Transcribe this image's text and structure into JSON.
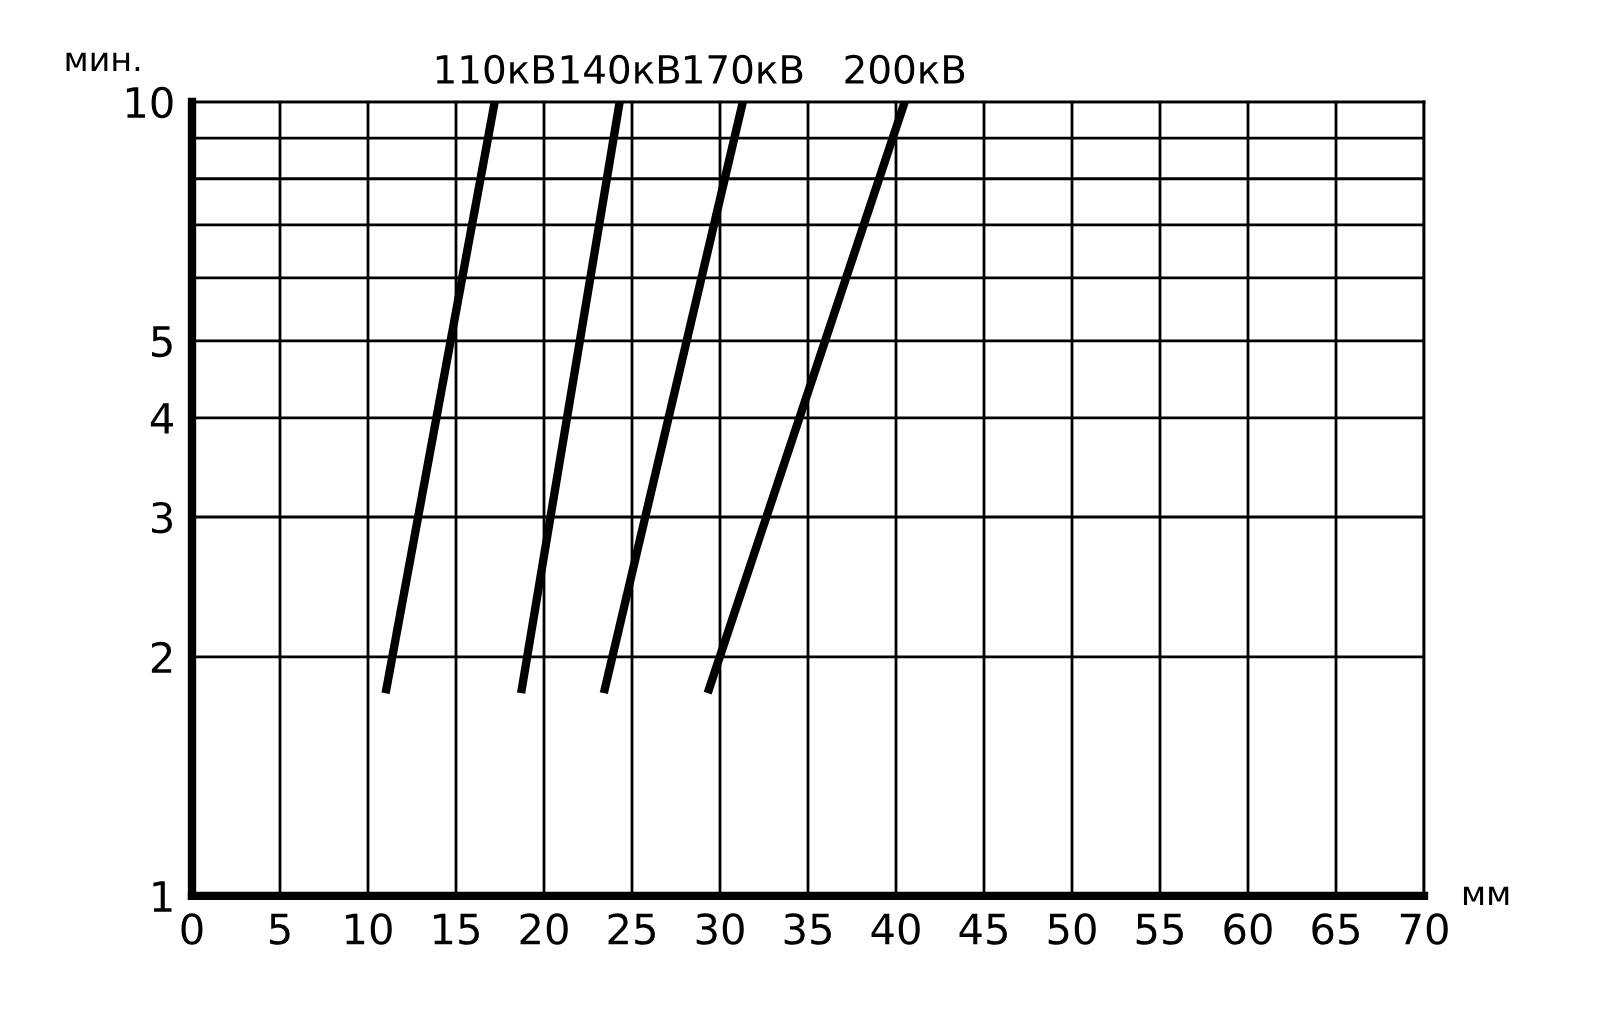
{
  "chart_data": {
    "type": "line",
    "xlabel": "мм",
    "ylabel": "мин.",
    "log": "y",
    "xlim": [
      0,
      70
    ],
    "xticks": [
      0,
      5,
      10,
      15,
      20,
      25,
      30,
      35,
      40,
      45,
      50,
      55,
      60,
      65,
      70
    ],
    "ylim": [
      1,
      10
    ],
    "yticks": [
      1,
      2,
      3,
      4,
      5,
      {
        "value": 6,
        "label": null
      },
      {
        "value": 7,
        "label": null
      },
      {
        "value": 8,
        "label": null
      },
      {
        "value": 9,
        "label": null
      },
      10
    ],
    "grid": true,
    "legend": false,
    "marker": "none",
    "line_style": "solid",
    "series": [
      {
        "name": "110кВ",
        "color": "#000000",
        "x": [
          11.0,
          17.2
        ],
        "values": [
          1.8,
          10
        ]
      },
      {
        "name": "140кВ",
        "color": "#000000",
        "x": [
          18.7,
          24.3
        ],
        "values": [
          1.8,
          10
        ]
      },
      {
        "name": "170кВ",
        "color": "#000000",
        "x": [
          23.4,
          31.3
        ],
        "values": [
          1.8,
          10
        ]
      },
      {
        "name": "200кВ",
        "color": "#000000",
        "x": [
          29.3,
          40.5
        ],
        "values": [
          1.8,
          10
        ]
      }
    ]
  }
}
